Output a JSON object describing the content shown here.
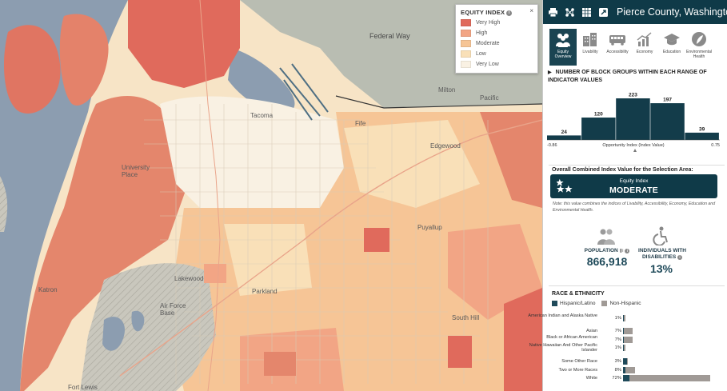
{
  "header": {
    "title": "Pierce County, Washington"
  },
  "toolbar_icons": [
    "print-icon",
    "share-network-icon",
    "table-icon",
    "external-link-icon"
  ],
  "tabs": [
    {
      "label": "Equity Overview",
      "icon": "people-group-icon",
      "active": true
    },
    {
      "label": "Livability",
      "icon": "buildings-icon",
      "active": false
    },
    {
      "label": "Accessibility",
      "icon": "bus-icon",
      "active": false
    },
    {
      "label": "Economy",
      "icon": "chart-growth-icon",
      "active": false
    },
    {
      "label": "Education",
      "icon": "graduation-cap-icon",
      "active": false
    },
    {
      "label": "Environmental Health",
      "icon": "leaf-person-icon",
      "active": false
    }
  ],
  "legend": {
    "title": "EQUITY INDEX",
    "close": "×",
    "items": [
      {
        "label": "Very High",
        "color": "#e06a5c"
      },
      {
        "label": "High",
        "color": "#f2a585"
      },
      {
        "label": "Moderate",
        "color": "#f6c596"
      },
      {
        "label": "Low",
        "color": "#f9e0b8"
      },
      {
        "label": "Very Low",
        "color": "#f9f1e3"
      }
    ]
  },
  "map_labels": {
    "federal_way": "Federal Way",
    "university_place": "University Place",
    "tacoma": "Tacoma",
    "fife": "Fife",
    "edgewood": "Edgewood",
    "puyallup": "Puyallup",
    "lakewood": "Lakewood",
    "parkland": "Parkland",
    "south_hill": "South Hill",
    "fort_lewis": "Fort Lewis",
    "air_force_base": "Air Force Base",
    "pacific": "Pacific",
    "milton": "Milton",
    "katron": "Katron"
  },
  "histogram": {
    "title": "NUMBER OF BLOCK GROUPS WITHIN EACH RANGE OF INDICATOR VALUES",
    "xlabel": "Opportunity Index (Index Value)",
    "xmin_label": "-0.86",
    "xmax_label": "0.75"
  },
  "chart_data": {
    "type": "bar",
    "categories": [
      "bin1",
      "bin2",
      "bin3",
      "bin4",
      "bin5"
    ],
    "values": [
      24,
      120,
      223,
      197,
      39
    ],
    "xlabel": "Opportunity Index (Index Value)",
    "x_range": [
      -0.86,
      0.75
    ],
    "ylim": [
      0,
      223
    ]
  },
  "combined": {
    "label": "Overall Combined Index Value for the Selection Area:",
    "card_sub": "Equity Index",
    "card_value": "MODERATE",
    "note": "Note: this value combines the indices of Livability, Accessibility, Economy, Education and Environmental Health."
  },
  "stats": {
    "population_label": "POPULATION",
    "population_value": "866,918",
    "disabilities_label_1": "INDIVIDUALS WITH",
    "disabilities_label_2": "DISABILITIES",
    "disabilities_value": "13%"
  },
  "race": {
    "title": "RACE & ETHNICITY",
    "legend_hispanic": "Hispanic/Latino",
    "legend_non_hispanic": "Non-Hispanic",
    "hispanic_color": "#1f4a5a",
    "non_hispanic_color": "#a09a96",
    "rows": [
      {
        "label": "American Indian and Alaska Native",
        "pct": "1%",
        "hispanic": 0.2,
        "non_hispanic": 1.0
      },
      {
        "label": "Asian",
        "pct": "7%",
        "hispanic": 0.3,
        "non_hispanic": 7.0
      },
      {
        "label": "Black or African American",
        "pct": "7%",
        "hispanic": 0.4,
        "non_hispanic": 7.0
      },
      {
        "label": "Native Hawaiian And Other Pacific Islander",
        "pct": "1%",
        "hispanic": 0.1,
        "non_hispanic": 1.3
      },
      {
        "label": "Some Other Race",
        "pct": "3%",
        "hispanic": 3.0,
        "non_hispanic": 0.3
      },
      {
        "label": "Two or More Races",
        "pct": "8%",
        "hispanic": 1.8,
        "non_hispanic": 8.0
      },
      {
        "label": "White",
        "pct": "72%",
        "hispanic": 5.0,
        "non_hispanic": 67.0
      }
    ]
  }
}
